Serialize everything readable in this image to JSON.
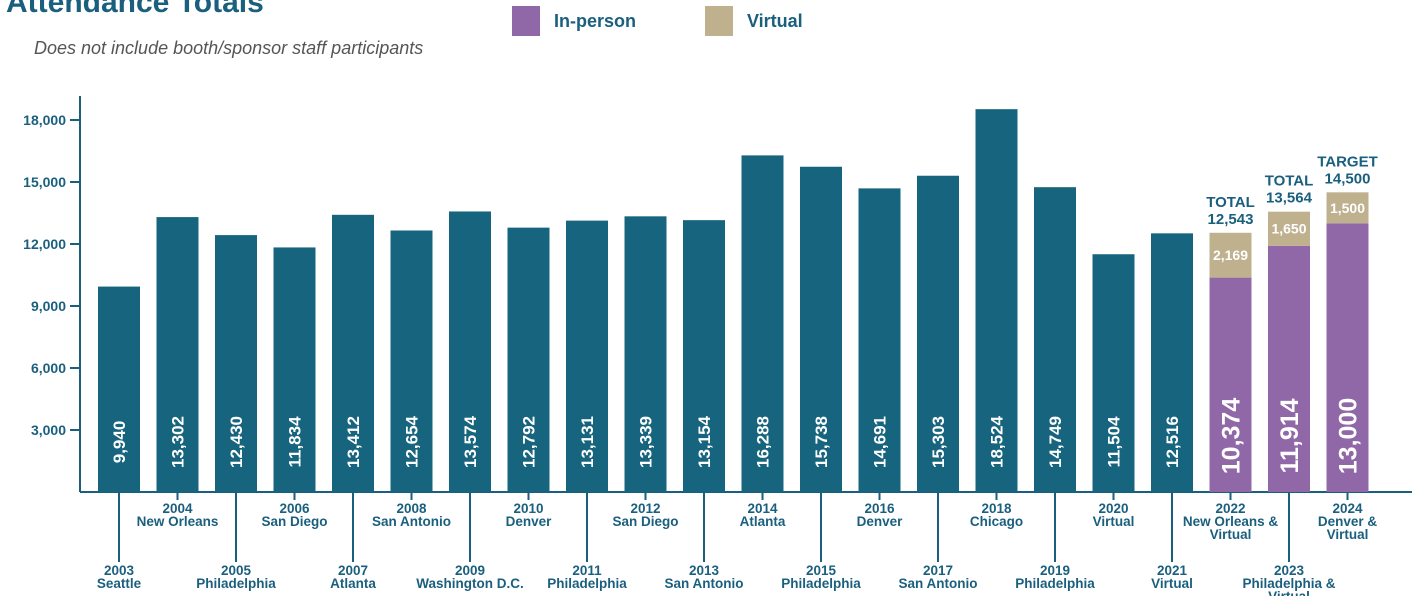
{
  "colors": {
    "historical": "#17647f",
    "in_person": "#9068a8",
    "virtual": "#bfb08e",
    "axis": "#1a5f7e"
  },
  "chart_data": {
    "type": "bar",
    "title": "Attendance Totals",
    "subtitle": "Does not include booth/sponsor staff participants",
    "legend": [
      {
        "name": "In-person",
        "color": "#9068a8"
      },
      {
        "name": "Virtual",
        "color": "#bfb08e"
      }
    ],
    "ylim": [
      0,
      19000
    ],
    "yticks": [
      3000,
      6000,
      9000,
      12000,
      15000,
      18000
    ],
    "ytick_labels": [
      "3,000",
      "6,000",
      "9,000",
      "12,000",
      "15,000",
      "18,000"
    ],
    "bars": [
      {
        "year": "2003",
        "location": "Seattle",
        "value": 9940,
        "label": "9,940"
      },
      {
        "year": "2004",
        "location": "New Orleans",
        "value": 13302,
        "label": "13,302"
      },
      {
        "year": "2005",
        "location": "Philadelphia",
        "value": 12430,
        "label": "12,430"
      },
      {
        "year": "2006",
        "location": "San Diego",
        "value": 11834,
        "label": "11,834"
      },
      {
        "year": "2007",
        "location": "Atlanta",
        "value": 13412,
        "label": "13,412"
      },
      {
        "year": "2008",
        "location": "San Antonio",
        "value": 12654,
        "label": "12,654"
      },
      {
        "year": "2009",
        "location": "Washington D.C.",
        "value": 13574,
        "label": "13,574"
      },
      {
        "year": "2010",
        "location": "Denver",
        "value": 12792,
        "label": "12,792"
      },
      {
        "year": "2011",
        "location": "Philadelphia",
        "value": 13131,
        "label": "13,131"
      },
      {
        "year": "2012",
        "location": "San Diego",
        "value": 13339,
        "label": "13,339"
      },
      {
        "year": "2013",
        "location": "San Antonio",
        "value": 13154,
        "label": "13,154"
      },
      {
        "year": "2014",
        "location": "Atlanta",
        "value": 16288,
        "label": "16,288"
      },
      {
        "year": "2015",
        "location": "Philadelphia",
        "value": 15738,
        "label": "15,738"
      },
      {
        "year": "2016",
        "location": "Denver",
        "value": 14691,
        "label": "14,691"
      },
      {
        "year": "2017",
        "location": "San Antonio",
        "value": 15303,
        "label": "15,303"
      },
      {
        "year": "2018",
        "location": "Chicago",
        "value": 18524,
        "label": "18,524"
      },
      {
        "year": "2019",
        "location": "Philadelphia",
        "value": 14749,
        "label": "14,749"
      },
      {
        "year": "2020",
        "location": "Virtual",
        "value": 11504,
        "label": "11,504"
      },
      {
        "year": "2021",
        "location": "Virtual",
        "value": 12516,
        "label": "12,516"
      },
      {
        "year": "2022",
        "location": "New Orleans & Virtual",
        "in_person": 10374,
        "in_person_label": "10,374",
        "virtual": 2169,
        "virtual_label": "2,169",
        "total_title": "TOTAL",
        "total_label": "12,543"
      },
      {
        "year": "2023",
        "location": "Philadelphia & Virtual",
        "in_person": 11914,
        "in_person_label": "11,914",
        "virtual": 1650,
        "virtual_label": "1,650",
        "total_title": "TOTAL",
        "total_label": "13,564"
      },
      {
        "year": "2024",
        "location": "Denver & Virtual",
        "in_person": 13000,
        "in_person_label": "13,000",
        "virtual": 1500,
        "virtual_label": "1,500",
        "total_title": "TARGET",
        "total_label": "14,500"
      }
    ]
  }
}
